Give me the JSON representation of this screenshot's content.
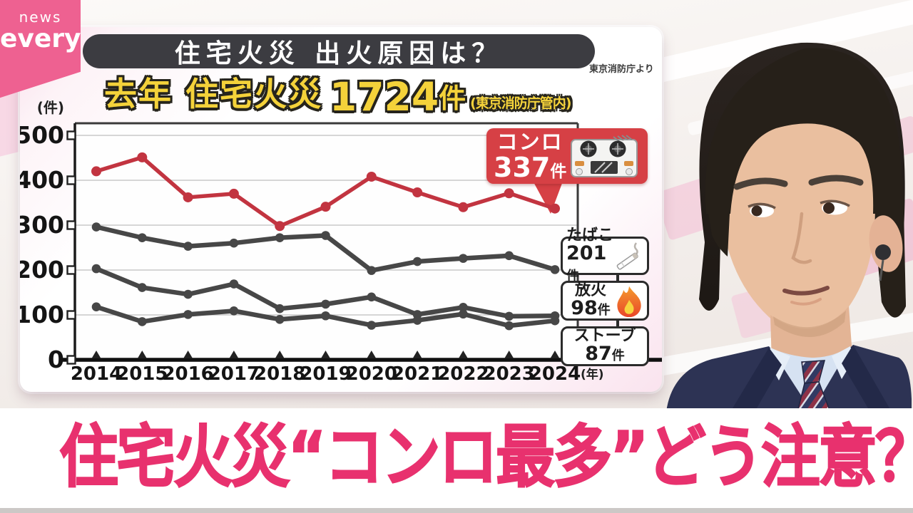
{
  "logo": {
    "line1": "news",
    "line2": "every."
  },
  "panel": {
    "title": "住宅火災 出火原因は？",
    "source_note": "東京消防庁より",
    "subtitle": {
      "prefix": "去年 住宅火災",
      "count_number": "1724",
      "count_unit": "件",
      "note": "(東京消防庁管内)"
    }
  },
  "chart_data": {
    "type": "line",
    "title": "住宅火災 出火原因は？",
    "unit_label": "(件)",
    "axis_note": "(年)",
    "categories": [
      2014,
      2015,
      2016,
      2017,
      2018,
      2019,
      2020,
      2021,
      2022,
      2023,
      2024
    ],
    "ylim": [
      0,
      500
    ],
    "yticks": [
      0,
      100,
      200,
      300,
      400,
      500
    ],
    "grid": true,
    "legend_position": "right",
    "series": [
      {
        "name": "コンロ",
        "color": "#c23440",
        "values": [
          420,
          451,
          362,
          370,
          298,
          341,
          408,
          373,
          340,
          371,
          337
        ]
      },
      {
        "name": "たばこ",
        "color": "#474747",
        "values": [
          296,
          272,
          253,
          260,
          272,
          277,
          199,
          219,
          226,
          232,
          201
        ]
      },
      {
        "name": "放火",
        "color": "#474747",
        "values": [
          203,
          161,
          146,
          169,
          114,
          124,
          140,
          101,
          117,
          97,
          98
        ]
      },
      {
        "name": "ストーブ",
        "color": "#474747",
        "values": [
          118,
          85,
          101,
          109,
          90,
          98,
          77,
          88,
          102,
          76,
          87
        ]
      }
    ],
    "callout": {
      "label": "コンロ",
      "value_number": "337",
      "value_unit": "件",
      "box_color": "#d64045"
    },
    "legend": [
      {
        "label": "たばこ",
        "value_number": "201",
        "value_unit": "件",
        "icon": "cigarette-icon"
      },
      {
        "label": "放火",
        "value_number": "98",
        "value_unit": "件",
        "icon": "flame-icon"
      },
      {
        "label": "ストーブ",
        "value_number": "87",
        "value_unit": "件",
        "icon": null
      }
    ]
  },
  "headline": {
    "text": "住宅火災“コンロ最多”どう注意？",
    "color": "#e8316e"
  }
}
